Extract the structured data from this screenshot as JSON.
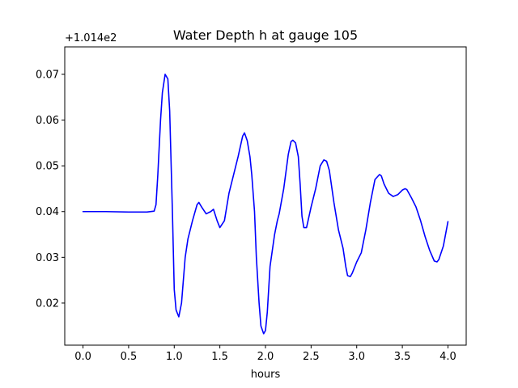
{
  "chart_data": {
    "type": "line",
    "title": "Water Depth h at gauge 105",
    "xlabel": "hours",
    "ylabel": "",
    "y_offset_label": "+1.014e2",
    "xlim": [
      -0.2,
      4.2
    ],
    "ylim": [
      0.0108,
      0.076
    ],
    "xticks": [
      0.0,
      0.5,
      1.0,
      1.5,
      2.0,
      2.5,
      3.0,
      3.5,
      4.0
    ],
    "xtick_labels": [
      "0.0",
      "0.5",
      "1.0",
      "1.5",
      "2.0",
      "2.5",
      "3.0",
      "3.5",
      "4.0"
    ],
    "yticks": [
      0.02,
      0.03,
      0.04,
      0.05,
      0.06,
      0.07
    ],
    "ytick_labels": [
      "0.02",
      "0.03",
      "0.04",
      "0.05",
      "0.06",
      "0.07"
    ],
    "grid": false,
    "line_color": "#0000ff",
    "series": [
      {
        "x": [
          0.0,
          0.25,
          0.5,
          0.7,
          0.78,
          0.8,
          0.82,
          0.85,
          0.87,
          0.9,
          0.93,
          0.95,
          0.98,
          1.0,
          1.02,
          1.05,
          1.08,
          1.12,
          1.15,
          1.2,
          1.25,
          1.27,
          1.3,
          1.35,
          1.4,
          1.43,
          1.47,
          1.5,
          1.55,
          1.6,
          1.65,
          1.7,
          1.75,
          1.77,
          1.8,
          1.83,
          1.85,
          1.88,
          1.9,
          1.93,
          1.95,
          1.98,
          2.0,
          2.02,
          2.05,
          2.1,
          2.13,
          2.15,
          2.2,
          2.25,
          2.28,
          2.3,
          2.33,
          2.36,
          2.38,
          2.4,
          2.42,
          2.45,
          2.5,
          2.55,
          2.6,
          2.64,
          2.67,
          2.7,
          2.75,
          2.8,
          2.85,
          2.88,
          2.9,
          2.93,
          2.95,
          3.0,
          3.05,
          3.1,
          3.15,
          3.2,
          3.25,
          3.27,
          3.3,
          3.35,
          3.4,
          3.45,
          3.5,
          3.53,
          3.55,
          3.6,
          3.65,
          3.7,
          3.75,
          3.8,
          3.85,
          3.88,
          3.9,
          3.95,
          4.0
        ],
        "values": [
          0.04,
          0.04,
          0.0399,
          0.0399,
          0.0401,
          0.0415,
          0.048,
          0.06,
          0.066,
          0.07,
          0.069,
          0.062,
          0.04,
          0.023,
          0.0185,
          0.017,
          0.02,
          0.03,
          0.034,
          0.038,
          0.0415,
          0.042,
          0.041,
          0.0395,
          0.04,
          0.0405,
          0.038,
          0.0365,
          0.038,
          0.044,
          0.048,
          0.052,
          0.0565,
          0.0572,
          0.0555,
          0.052,
          0.048,
          0.04,
          0.03,
          0.02,
          0.015,
          0.0133,
          0.014,
          0.018,
          0.028,
          0.035,
          0.038,
          0.0395,
          0.045,
          0.0525,
          0.0553,
          0.0556,
          0.055,
          0.052,
          0.046,
          0.039,
          0.0365,
          0.0365,
          0.041,
          0.045,
          0.05,
          0.0513,
          0.051,
          0.049,
          0.042,
          0.036,
          0.032,
          0.028,
          0.026,
          0.0258,
          0.0265,
          0.029,
          0.031,
          0.036,
          0.042,
          0.047,
          0.0481,
          0.0478,
          0.046,
          0.044,
          0.0433,
          0.0437,
          0.0447,
          0.045,
          0.0448,
          0.043,
          0.041,
          0.038,
          0.0345,
          0.0315,
          0.0292,
          0.029,
          0.0295,
          0.0325,
          0.0378
        ]
      }
    ]
  }
}
